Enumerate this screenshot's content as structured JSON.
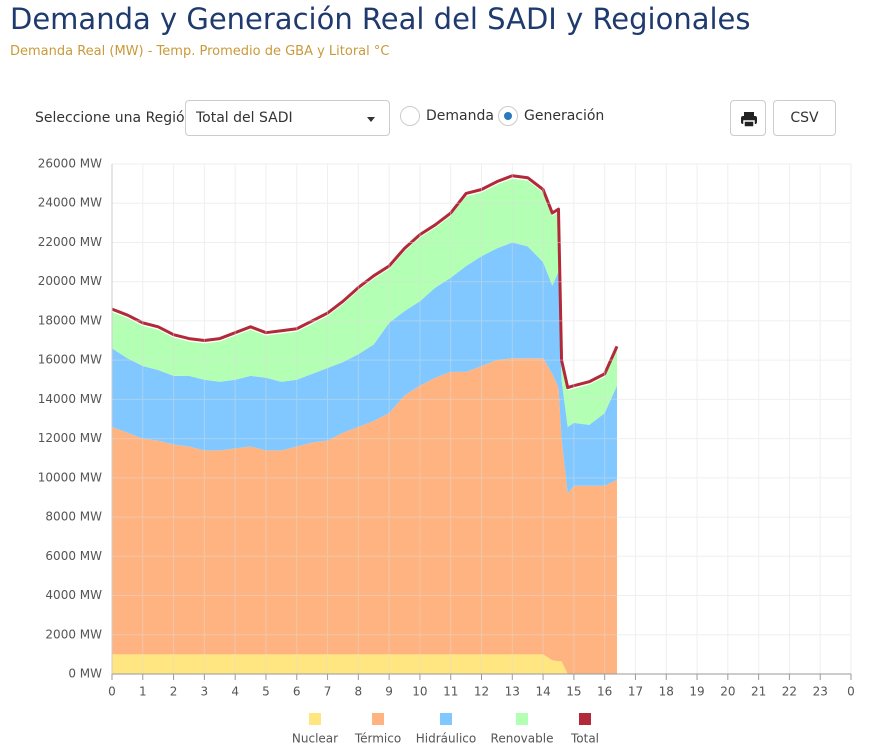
{
  "header": {
    "title": "Demanda y Generación Real del SADI y Regionales",
    "subtitle": "Demanda Real (MW) - Temp. Promedio de GBA y Litoral °C"
  },
  "controls": {
    "region_label": "Seleccione una Región",
    "region_value": "Total del SADI",
    "radio_options": [
      "Demanda",
      "Generación"
    ],
    "selected": 1,
    "csv": "CSV"
  },
  "chart_data": {
    "type": "stacked-area",
    "x": [
      0,
      0.5,
      1,
      1.5,
      2,
      2.5,
      3,
      3.5,
      4,
      4.5,
      5,
      5.5,
      6,
      6.5,
      7,
      7.5,
      8,
      8.5,
      9,
      9.5,
      10,
      10.5,
      11,
      11.5,
      12,
      12.5,
      13,
      13.5,
      14,
      14.3,
      14.5,
      14.6,
      14.8,
      15,
      15.5,
      16,
      16.4
    ],
    "series": [
      {
        "name": "Nuclear",
        "color": "#ffe680",
        "values": [
          1000,
          1000,
          1000,
          1000,
          1000,
          1000,
          1000,
          1000,
          1000,
          1000,
          1000,
          1000,
          1000,
          1000,
          1000,
          1000,
          1000,
          1000,
          1000,
          1000,
          1000,
          1000,
          1000,
          1000,
          1000,
          1000,
          1000,
          1000,
          1000,
          700,
          650,
          650,
          0,
          0,
          0,
          0,
          0
        ]
      },
      {
        "name": "Térmico",
        "color": "#ffb380",
        "values": [
          11600,
          11300,
          11000,
          10900,
          10700,
          10600,
          10400,
          10400,
          10500,
          10600,
          10400,
          10400,
          10600,
          10800,
          10900,
          11300,
          11600,
          11900,
          12300,
          13200,
          13700,
          14100,
          14400,
          14400,
          14700,
          15000,
          15100,
          15100,
          15100,
          14600,
          13950,
          11350,
          9200,
          9600,
          9600,
          9600,
          9900
        ]
      },
      {
        "name": "Hidráulico",
        "color": "#80c8ff",
        "values": [
          4000,
          3800,
          3700,
          3600,
          3500,
          3600,
          3600,
          3500,
          3500,
          3600,
          3700,
          3500,
          3400,
          3500,
          3700,
          3600,
          3700,
          3900,
          4600,
          4300,
          4300,
          4600,
          4800,
          5400,
          5600,
          5700,
          5900,
          5700,
          4900,
          4500,
          5900,
          3000,
          3400,
          3200,
          3100,
          3700,
          4800
        ]
      },
      {
        "name": "Renovable",
        "color": "#b3ffb3",
        "values": [
          1850,
          2050,
          2050,
          2050,
          1950,
          1750,
          1850,
          2050,
          2250,
          2350,
          2150,
          2450,
          2450,
          2550,
          2650,
          2950,
          3250,
          3350,
          2750,
          3050,
          3250,
          3050,
          3150,
          3550,
          3250,
          3250,
          3250,
          3350,
          3550,
          3550,
          3050,
          850,
          1850,
          1750,
          2050,
          1850,
          1850
        ]
      },
      {
        "name": "Total",
        "color": "#b22a3a",
        "line": true,
        "values": [
          18600,
          18300,
          17900,
          17700,
          17300,
          17100,
          17000,
          17100,
          17400,
          17700,
          17400,
          17500,
          17600,
          18000,
          18400,
          19000,
          19700,
          20300,
          20800,
          21700,
          22400,
          22900,
          23500,
          24500,
          24700,
          25100,
          25400,
          25300,
          24700,
          23500,
          23700,
          16000,
          14600,
          14700,
          14900,
          15300,
          16700
        ]
      }
    ],
    "xlim": [
      0,
      24
    ],
    "xticks": [
      0,
      1,
      2,
      3,
      4,
      5,
      6,
      7,
      8,
      9,
      10,
      11,
      12,
      13,
      14,
      15,
      16,
      17,
      18,
      19,
      20,
      21,
      22,
      23,
      {
        "value": 24,
        "label": "0"
      }
    ],
    "ylim": [
      0,
      26000
    ],
    "yticks": [
      {
        "value": 0,
        "label": "0 MW"
      },
      {
        "value": 2000,
        "label": "2000 MW"
      },
      {
        "value": 4000,
        "label": "4000 MW"
      },
      {
        "value": 6000,
        "label": "6000 MW"
      },
      {
        "value": 8000,
        "label": "8000 MW"
      },
      {
        "value": 10000,
        "label": "10000 MW"
      },
      {
        "value": 12000,
        "label": "12000 MW"
      },
      {
        "value": 14000,
        "label": "14000 MW"
      },
      {
        "value": 16000,
        "label": "16000 MW"
      },
      {
        "value": 18000,
        "label": "18000 MW"
      },
      {
        "value": 20000,
        "label": "20000 MW"
      },
      {
        "value": 22000,
        "label": "22000 MW"
      },
      {
        "value": 24000,
        "label": "24000 MW"
      },
      {
        "value": 26000,
        "label": "26000 MW"
      }
    ],
    "grid": true
  }
}
